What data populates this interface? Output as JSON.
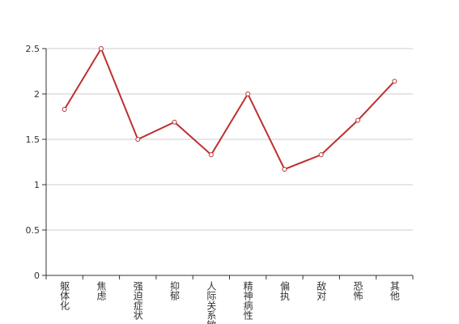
{
  "chart_data": {
    "type": "line",
    "categories": [
      "躯体化",
      "焦虑",
      "强迫症状",
      "抑郁",
      "人际关系敏感",
      "精神病性",
      "偏执",
      "敌对",
      "恐怖",
      "其他"
    ],
    "series": [
      {
        "color": "#bf3030",
        "values": [
          1.83,
          2.5,
          1.5,
          1.69,
          1.33,
          2.0,
          1.17,
          1.33,
          1.71,
          2.14
        ]
      }
    ],
    "ylim": [
      0,
      2.5
    ],
    "yticks": [
      0,
      0.5,
      1,
      1.5,
      2,
      2.5
    ],
    "grid": true
  }
}
